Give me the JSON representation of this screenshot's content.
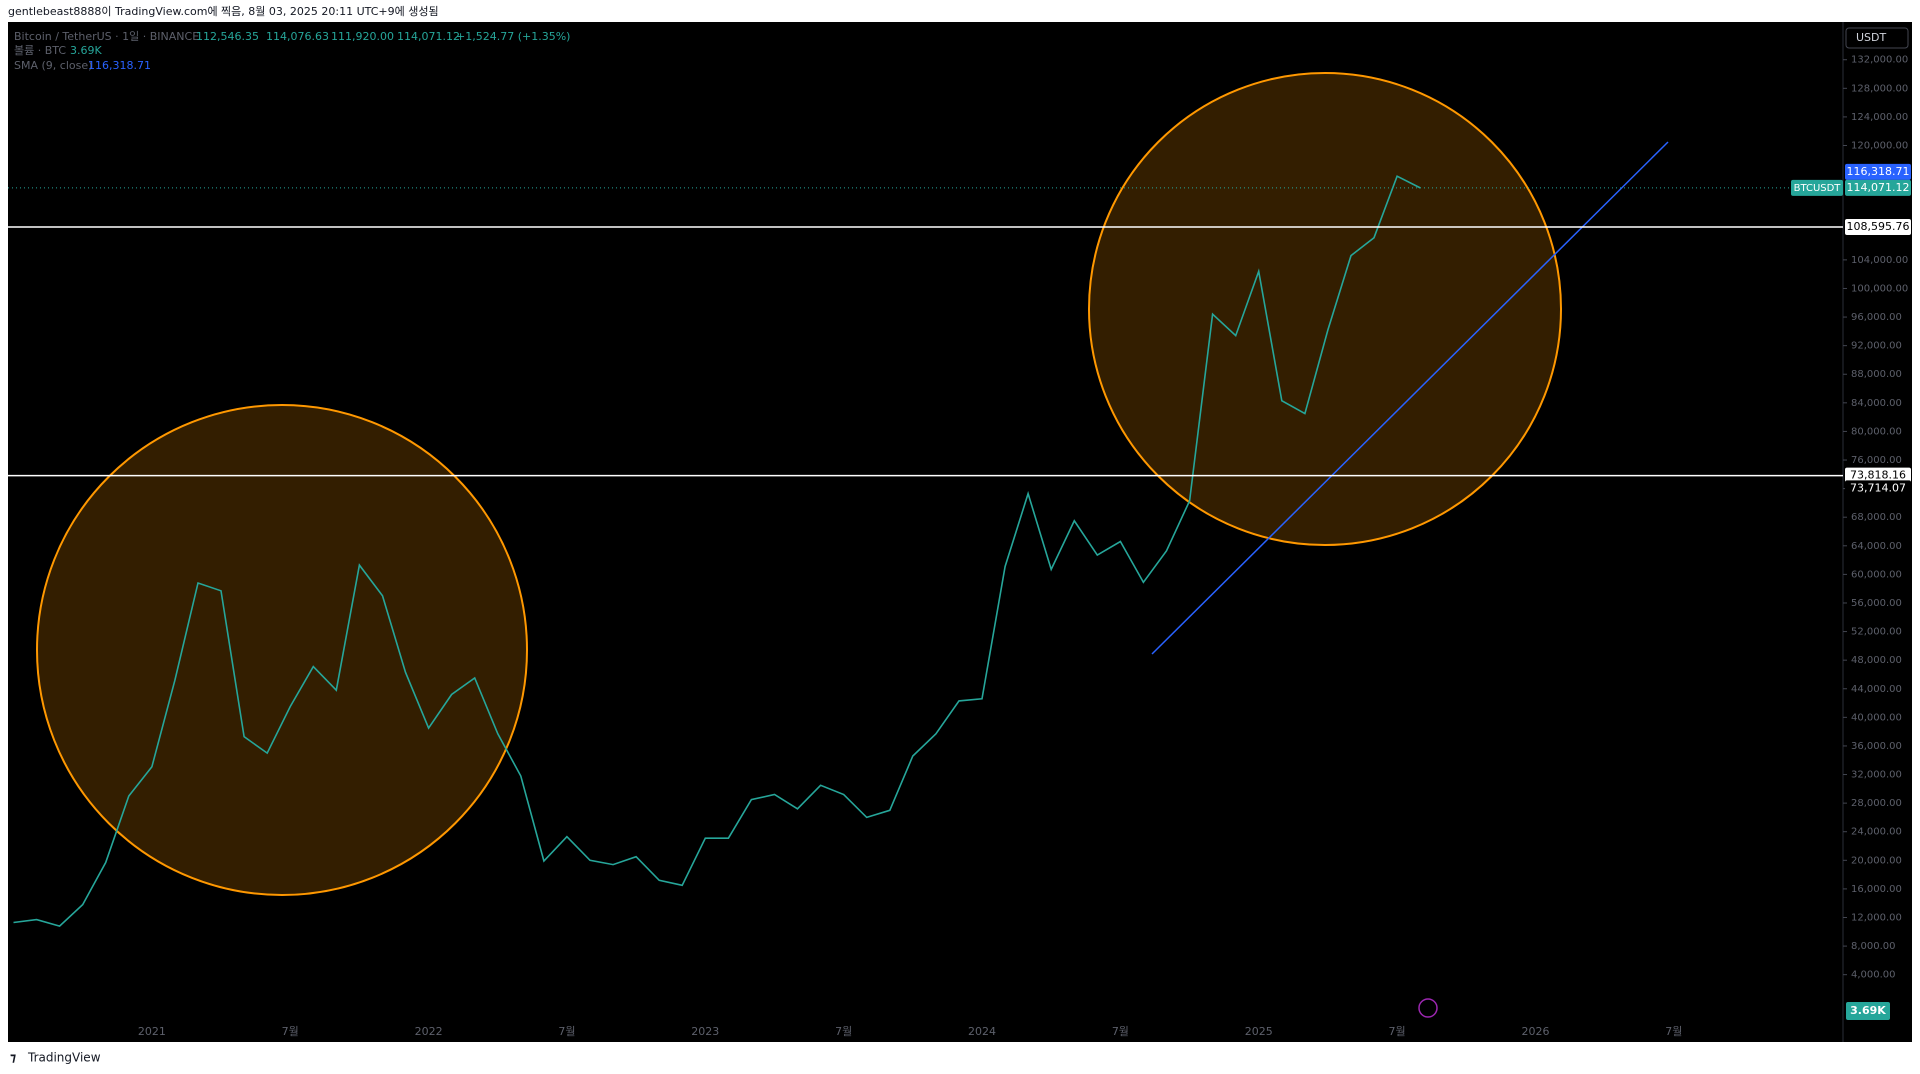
{
  "header": {
    "caption": "gentlebeast8888이 TradingView.com에 찍음, 8월 03, 2025 20:11 UTC+9에 생성됨"
  },
  "legend": {
    "symbol": "Bitcoin / TetherUS · 1일 · BINANCE",
    "open": "112,546.35",
    "high": "114,076.63",
    "low": "111,920.00",
    "close": "114,071.12",
    "change": "+1,524.77 (+1.35%)",
    "volume_name": "볼륨 · BTC",
    "volume_value": "3.69K",
    "sma_name": "SMA (9, close)",
    "sma_value": "116,318.71"
  },
  "currency": "USDT",
  "footer": {
    "brand": "TradingView"
  },
  "chart_data": {
    "type": "line",
    "categories": [
      null,
      null,
      null,
      null,
      null,
      null,
      "2021",
      null,
      null,
      null,
      null,
      null,
      "7월",
      null,
      null,
      null,
      null,
      null,
      "2022",
      null,
      null,
      null,
      null,
      null,
      "7월",
      null,
      null,
      null,
      null,
      null,
      "2023",
      null,
      null,
      null,
      null,
      null,
      "7월",
      null,
      null,
      null,
      null,
      null,
      "2024",
      null,
      null,
      null,
      null,
      null,
      "7월",
      null,
      null,
      null,
      null,
      null,
      "2025",
      null,
      null,
      null,
      null,
      null,
      "7월",
      null,
      null,
      null,
      null,
      null,
      "2026",
      null,
      null,
      null,
      null,
      null,
      "7월"
    ],
    "series": [
      {
        "name": "BTCUSDT",
        "color": "#26a69a",
        "values": [
          11300,
          11700,
          10800,
          13800,
          19700,
          29000,
          33100,
          45200,
          58800,
          57700,
          37300,
          35000,
          41500,
          47100,
          43800,
          61300,
          57000,
          46300,
          38500,
          43200,
          45500,
          37700,
          31800,
          19900,
          23300,
          20000,
          19400,
          20500,
          17200,
          16500,
          23100,
          23100,
          28500,
          29200,
          27200,
          30500,
          29200,
          26000,
          27000,
          34600,
          37700,
          42300,
          42600,
          61100,
          71300,
          60700,
          67500,
          62700,
          64600,
          58900,
          63300,
          70300,
          96400,
          93400,
          102400,
          84300,
          82500,
          94200,
          104600,
          107100,
          115700,
          114071.12,
          null,
          null,
          null,
          null,
          null,
          null,
          null,
          null,
          null,
          null,
          null
        ]
      }
    ],
    "ylim": [
      -2200,
      136900
    ],
    "yticks": [
      {
        "value": 4000,
        "label": "4,000.00"
      },
      {
        "value": 8000,
        "label": "8,000.00"
      },
      {
        "value": 12000,
        "label": "12,000.00"
      },
      {
        "value": 16000,
        "label": "16,000.00"
      },
      {
        "value": 20000,
        "label": "20,000.00"
      },
      {
        "value": 24000,
        "label": "24,000.00"
      },
      {
        "value": 28000,
        "label": "28,000.00"
      },
      {
        "value": 32000,
        "label": "32,000.00"
      },
      {
        "value": 36000,
        "label": "36,000.00"
      },
      {
        "value": 40000,
        "label": "40,000.00"
      },
      {
        "value": 44000,
        "label": "44,000.00"
      },
      {
        "value": 48000,
        "label": "48,000.00"
      },
      {
        "value": 52000,
        "label": "52,000.00"
      },
      {
        "value": 56000,
        "label": "56,000.00"
      },
      {
        "value": 60000,
        "label": "60,000.00"
      },
      {
        "value": 64000,
        "label": "64,000.00"
      },
      {
        "value": 68000,
        "label": "68,000.00"
      },
      {
        "value": 72000,
        "label": "72,000.00"
      },
      {
        "value": 76000,
        "label": "76,000.00"
      },
      {
        "value": 80000,
        "label": "80,000.00"
      },
      {
        "value": 84000,
        "label": "84,000.00"
      },
      {
        "value": 88000,
        "label": "88,000.00"
      },
      {
        "value": 92000,
        "label": "92,000.00"
      },
      {
        "value": 96000,
        "label": "96,000.00"
      },
      {
        "value": 100000,
        "label": "100,000.00"
      },
      {
        "value": 104000,
        "label": "104,000.00"
      },
      {
        "value": 120000,
        "label": "120,000.00"
      },
      {
        "value": 124000,
        "label": "124,000.00"
      },
      {
        "value": 128000,
        "label": "128,000.00"
      },
      {
        "value": 132000,
        "label": "132,000.00"
      }
    ],
    "horizontal_lines": [
      {
        "value": 108595.76,
        "label": "108,595.76",
        "color": "#ffffff"
      },
      {
        "value": 73818.16,
        "label": "73,818.16",
        "color": "#ffffff"
      }
    ],
    "price_labels": [
      {
        "value": 73714.07,
        "label": "73,714.07"
      }
    ],
    "last_price": {
      "symbol": "BTCUSDT",
      "value": 114071.12,
      "label": "114,071.12",
      "color": "#26a69a"
    },
    "sma_price": {
      "value": 116318.71,
      "label": "116,318.71",
      "color": "#2962ff"
    }
  }
}
